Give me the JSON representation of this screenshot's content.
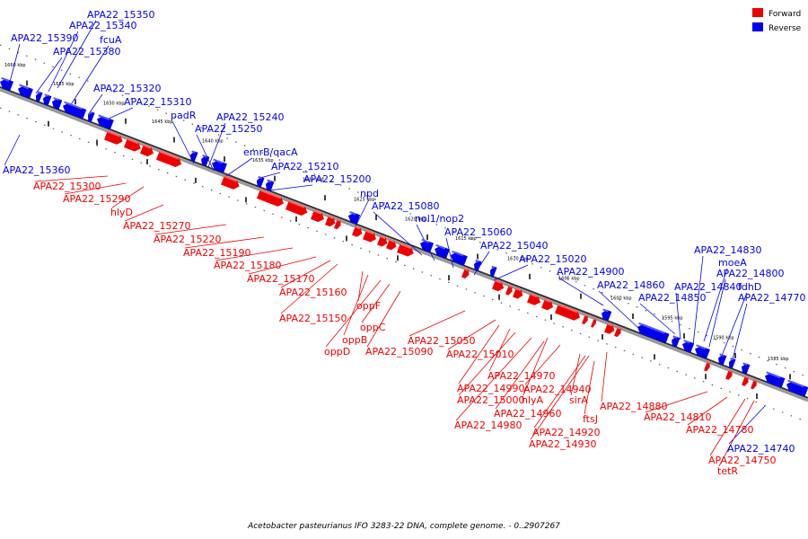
{
  "legend": {
    "forward": {
      "label": "Forward",
      "color": "#ee0000"
    },
    "reverse": {
      "label": "Reverse",
      "color": "#0000ee"
    }
  },
  "caption": "Acetobacter pasteurianus IFO 3283-22 DNA, complete genome. - 0..2907267",
  "scale_labels": [
    "1660 kbp",
    "1655 kbp",
    "1650 kbp",
    "1645 kbp",
    "1640 kbp",
    "1635 kbp",
    "1630 kbp",
    "1625 kbp",
    "1620 kbp",
    "1615 kbp",
    "1610 kbp",
    "1605 kbp",
    "1600 kbp",
    "1595 kbp",
    "1590 kbp",
    "1585 kbp"
  ],
  "reverse_genes": [
    "APA22_15390",
    "APA22_15350",
    "APA22_15340",
    "APA22_15380",
    "fcuA",
    "APA22_15320",
    "APA22_15310",
    "APA22_15360",
    "padR",
    "APA22_15240",
    "APA22_15250",
    "emrB/qacA",
    "APA22_15210",
    "APA22_15200",
    "npd",
    "APA22_15080",
    "nol1/nop2",
    "APA22_15060",
    "APA22_15040",
    "APA22_15020",
    "APA22_14900",
    "APA22_14860",
    "APA22_14850",
    "APA22_14840",
    "APA22_14830",
    "moeA",
    "APA22_14800",
    "fdhD",
    "APA22_14770",
    "APA22_14740"
  ],
  "forward_genes": [
    "APA22_15300",
    "APA22_15290",
    "hlyD",
    "APA22_15270",
    "APA22_15220",
    "APA22_15190",
    "APA22_15180",
    "APA22_15170",
    "APA22_15160",
    "APA22_15150",
    "oppF",
    "oppB",
    "oppD",
    "oppC",
    "APA22_15090",
    "APA22_15050",
    "APA22_15010",
    "APA22_14970",
    "APA22_14990",
    "APA22_15000",
    "APA22_14980",
    "hlyA",
    "APA22_14960",
    "APA22_14940",
    "sirA",
    "APA22_14920",
    "APA22_14930",
    "ftsJ",
    "APA22_14880",
    "APA22_14810",
    "APA22_14780",
    "APA22_14750",
    "tetR"
  ]
}
